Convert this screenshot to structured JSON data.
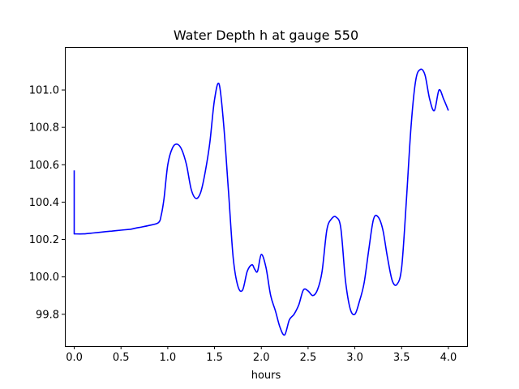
{
  "chart_data": {
    "type": "line",
    "title": "Water Depth h at gauge 550",
    "xlabel": "hours",
    "ylabel": "",
    "xlim": [
      -0.1,
      4.2
    ],
    "ylim": [
      99.63,
      101.23
    ],
    "xticks": [
      0.0,
      0.5,
      1.0,
      1.5,
      2.0,
      2.5,
      3.0,
      3.5,
      4.0
    ],
    "xtick_labels": [
      "0.0",
      "0.5",
      "1.0",
      "1.5",
      "2.0",
      "2.5",
      "3.0",
      "3.5",
      "4.0"
    ],
    "yticks": [
      99.8,
      100.0,
      100.2,
      100.4,
      100.6,
      100.8,
      101.0
    ],
    "ytick_labels": [
      "99.8",
      "100.0",
      "100.2",
      "100.4",
      "100.6",
      "100.8",
      "101.0"
    ],
    "grid": false,
    "series": [
      {
        "color": "#0000ff",
        "x": [
          0.0,
          0.0,
          0.1,
          0.2,
          0.3,
          0.4,
          0.5,
          0.6,
          0.65,
          0.7,
          0.8,
          0.9,
          0.93,
          0.96,
          1.0,
          1.05,
          1.1,
          1.15,
          1.2,
          1.25,
          1.3,
          1.35,
          1.4,
          1.45,
          1.5,
          1.55,
          1.6,
          1.65,
          1.7,
          1.75,
          1.8,
          1.85,
          1.9,
          1.93,
          1.96,
          2.0,
          2.05,
          2.1,
          2.15,
          2.2,
          2.25,
          2.3,
          2.35,
          2.4,
          2.45,
          2.5,
          2.55,
          2.6,
          2.65,
          2.7,
          2.75,
          2.8,
          2.85,
          2.9,
          2.95,
          3.0,
          3.05,
          3.1,
          3.15,
          3.2,
          3.25,
          3.3,
          3.35,
          3.4,
          3.45,
          3.5,
          3.55,
          3.6,
          3.65,
          3.7,
          3.75,
          3.8,
          3.85,
          3.9,
          3.95,
          4.0
        ],
        "y": [
          100.57,
          100.23,
          100.23,
          100.235,
          100.24,
          100.245,
          100.25,
          100.255,
          100.26,
          100.265,
          100.275,
          100.29,
          100.33,
          100.42,
          100.6,
          100.69,
          100.71,
          100.68,
          100.6,
          100.47,
          100.42,
          100.45,
          100.56,
          100.72,
          100.95,
          101.03,
          100.8,
          100.45,
          100.1,
          99.95,
          99.93,
          100.03,
          100.065,
          100.04,
          100.03,
          100.12,
          100.05,
          99.9,
          99.82,
          99.73,
          99.69,
          99.77,
          99.8,
          99.85,
          99.93,
          99.925,
          99.9,
          99.93,
          100.03,
          100.25,
          100.31,
          100.32,
          100.26,
          99.98,
          99.83,
          99.8,
          99.87,
          99.97,
          100.15,
          100.31,
          100.32,
          100.25,
          100.1,
          99.98,
          99.96,
          100.05,
          100.4,
          100.8,
          101.05,
          101.11,
          101.08,
          100.95,
          100.89,
          101.0,
          100.95,
          100.89
        ]
      }
    ]
  }
}
